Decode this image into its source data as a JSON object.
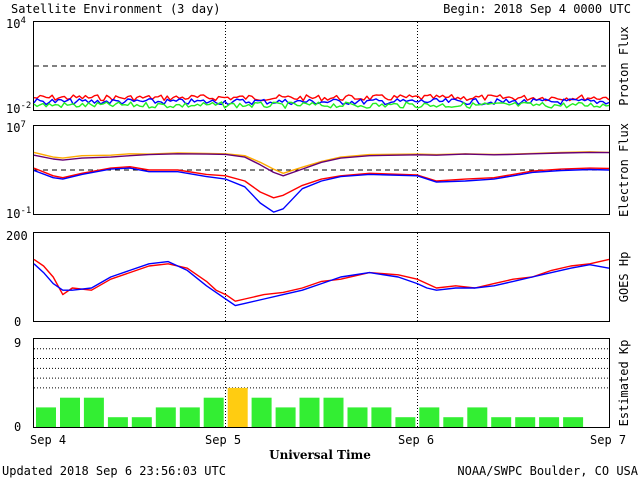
{
  "header": {
    "title": "Satellite Environment (3 day)",
    "begin": "Begin:  2018 Sep 4 0000 UTC"
  },
  "footer": {
    "updated": "Updated 2018 Sep  6 23:56:03 UTC",
    "source": "NOAA/SWPC Boulder, CO USA"
  },
  "xaxis": {
    "label": "Universal Time",
    "ticks": [
      "Sep 4",
      "Sep 5",
      "Sep 6",
      "Sep 7"
    ]
  },
  "colors": {
    "red": "#ff0000",
    "blue": "#0000ff",
    "green": "#22ee22",
    "orange": "#ffaa00",
    "purple": "#660077",
    "kp_green": "#33ee33",
    "kp_yellow": "#ffcc11"
  },
  "chart_data": [
    {
      "type": "line",
      "id": "proton",
      "ylabel": "Proton Flux",
      "yscale": "log",
      "ylim": [
        0.01,
        10000
      ],
      "ytick_labels": [
        {
          "base": "10",
          "exp": "4",
          "value": 10000
        },
        {
          "base": "10",
          "exp": "-2",
          "value": 0.01
        }
      ],
      "threshold": 10,
      "x_days": [
        0,
        0.25,
        0.5,
        0.75,
        1,
        1.25,
        1.5,
        1.75,
        2,
        2.25,
        2.5,
        2.75,
        3
      ],
      "series": [
        {
          "color": "red",
          "values": [
            0.068,
            0.07,
            0.068,
            0.069,
            0.07,
            0.068,
            0.067,
            0.068,
            0.07,
            0.069,
            0.068,
            0.069,
            0.07
          ]
        },
        {
          "color": "blue",
          "values": [
            0.038,
            0.037,
            0.038,
            0.036,
            0.037,
            0.038,
            0.036,
            0.037,
            0.038,
            0.037,
            0.036,
            0.037,
            0.038
          ]
        },
        {
          "color": "green",
          "values": [
            0.022,
            0.021,
            0.022,
            0.021,
            0.022,
            0.021,
            0.022,
            0.021,
            0.022,
            0.021,
            0.022,
            0.021,
            0.022
          ]
        }
      ]
    },
    {
      "type": "line",
      "id": "electron",
      "ylabel": "Electron Flux",
      "yscale": "log",
      "ylim": [
        0.1,
        10000000
      ],
      "ytick_labels": [
        {
          "base": "10",
          "exp": "7",
          "value": 10000000
        },
        {
          "base": "10",
          "exp": "-1",
          "value": 0.1
        }
      ],
      "threshold": 1000,
      "x_days": [
        0,
        0.1,
        0.15,
        0.25,
        0.4,
        0.5,
        0.6,
        0.75,
        0.9,
        1.0,
        1.1,
        1.18,
        1.25,
        1.3,
        1.4,
        1.5,
        1.6,
        1.75,
        2.0,
        2.1,
        2.25,
        2.4,
        2.5,
        2.6,
        2.75,
        2.9,
        3.0
      ],
      "series": [
        {
          "color": "orange",
          "values": [
            40000,
            15000,
            12000,
            20000,
            22000,
            30000,
            28000,
            35000,
            32000,
            30000,
            20000,
            5000,
            1200,
            500,
            1800,
            6000,
            15000,
            25000,
            28000,
            25000,
            30000,
            26000,
            28000,
            32000,
            40000,
            45000,
            40000
          ]
        },
        {
          "color": "purple",
          "values": [
            22000,
            10000,
            8000,
            12000,
            15000,
            20000,
            25000,
            30000,
            28000,
            26000,
            15000,
            3000,
            600,
            300,
            1200,
            5000,
            12000,
            20000,
            24000,
            22000,
            28000,
            24000,
            26000,
            30000,
            35000,
            40000,
            38000
          ]
        },
        {
          "color": "red",
          "values": [
            1500,
            300,
            200,
            500,
            1500,
            2000,
            1000,
            1000,
            400,
            300,
            100,
            10,
            3,
            5,
            40,
            150,
            300,
            500,
            350,
            100,
            150,
            200,
            400,
            800,
            1200,
            1500,
            1400
          ]
        },
        {
          "color": "blue",
          "values": [
            900,
            200,
            150,
            400,
            1200,
            1500,
            700,
            700,
            250,
            150,
            30,
            1,
            0.15,
            0.3,
            20,
            100,
            250,
            400,
            300,
            80,
            100,
            150,
            300,
            600,
            900,
            1100,
            1000
          ]
        }
      ]
    },
    {
      "type": "line",
      "id": "goes_hp",
      "ylabel": "GOES Hp",
      "ylim": [
        0,
        200
      ],
      "ytick_labels": [
        "200",
        "0"
      ],
      "x_days": [
        0,
        0.05,
        0.1,
        0.15,
        0.2,
        0.3,
        0.4,
        0.5,
        0.6,
        0.7,
        0.8,
        0.9,
        0.95,
        1.0,
        1.05,
        1.1,
        1.2,
        1.3,
        1.4,
        1.5,
        1.6,
        1.75,
        1.9,
        2.0,
        2.05,
        2.1,
        2.2,
        2.3,
        2.4,
        2.5,
        2.6,
        2.7,
        2.8,
        2.9,
        3.0
      ],
      "series": [
        {
          "color": "red",
          "values": [
            140,
            125,
            100,
            60,
            75,
            70,
            95,
            110,
            125,
            130,
            120,
            90,
            70,
            60,
            45,
            50,
            60,
            65,
            75,
            90,
            95,
            110,
            105,
            95,
            85,
            75,
            80,
            75,
            85,
            95,
            100,
            115,
            125,
            130,
            140
          ]
        },
        {
          "color": "blue",
          "values": [
            130,
            110,
            85,
            70,
            70,
            75,
            100,
            115,
            130,
            135,
            115,
            80,
            65,
            50,
            35,
            40,
            50,
            60,
            70,
            85,
            100,
            110,
            100,
            85,
            75,
            70,
            75,
            75,
            80,
            90,
            100,
            110,
            120,
            128,
            120
          ]
        }
      ]
    },
    {
      "type": "bar",
      "id": "kp",
      "ylabel": "Estimated Kp",
      "ylim": [
        0,
        9
      ],
      "ytick_labels": [
        "9",
        "0"
      ],
      "hgrid": [
        4,
        5,
        6,
        7,
        8
      ],
      "interval_hours": 3,
      "values": [
        2,
        3,
        3,
        1,
        1,
        2,
        2,
        3,
        4,
        3,
        2,
        3,
        3,
        2,
        2,
        1,
        2,
        1,
        2,
        1,
        1,
        1,
        1,
        0
      ],
      "bar_colors": [
        "kp_green",
        "kp_green",
        "kp_green",
        "kp_green",
        "kp_green",
        "kp_green",
        "kp_green",
        "kp_green",
        "kp_yellow",
        "kp_green",
        "kp_green",
        "kp_green",
        "kp_green",
        "kp_green",
        "kp_green",
        "kp_green",
        "kp_green",
        "kp_green",
        "kp_green",
        "kp_green",
        "kp_green",
        "kp_green",
        "kp_green",
        "kp_green"
      ]
    }
  ]
}
